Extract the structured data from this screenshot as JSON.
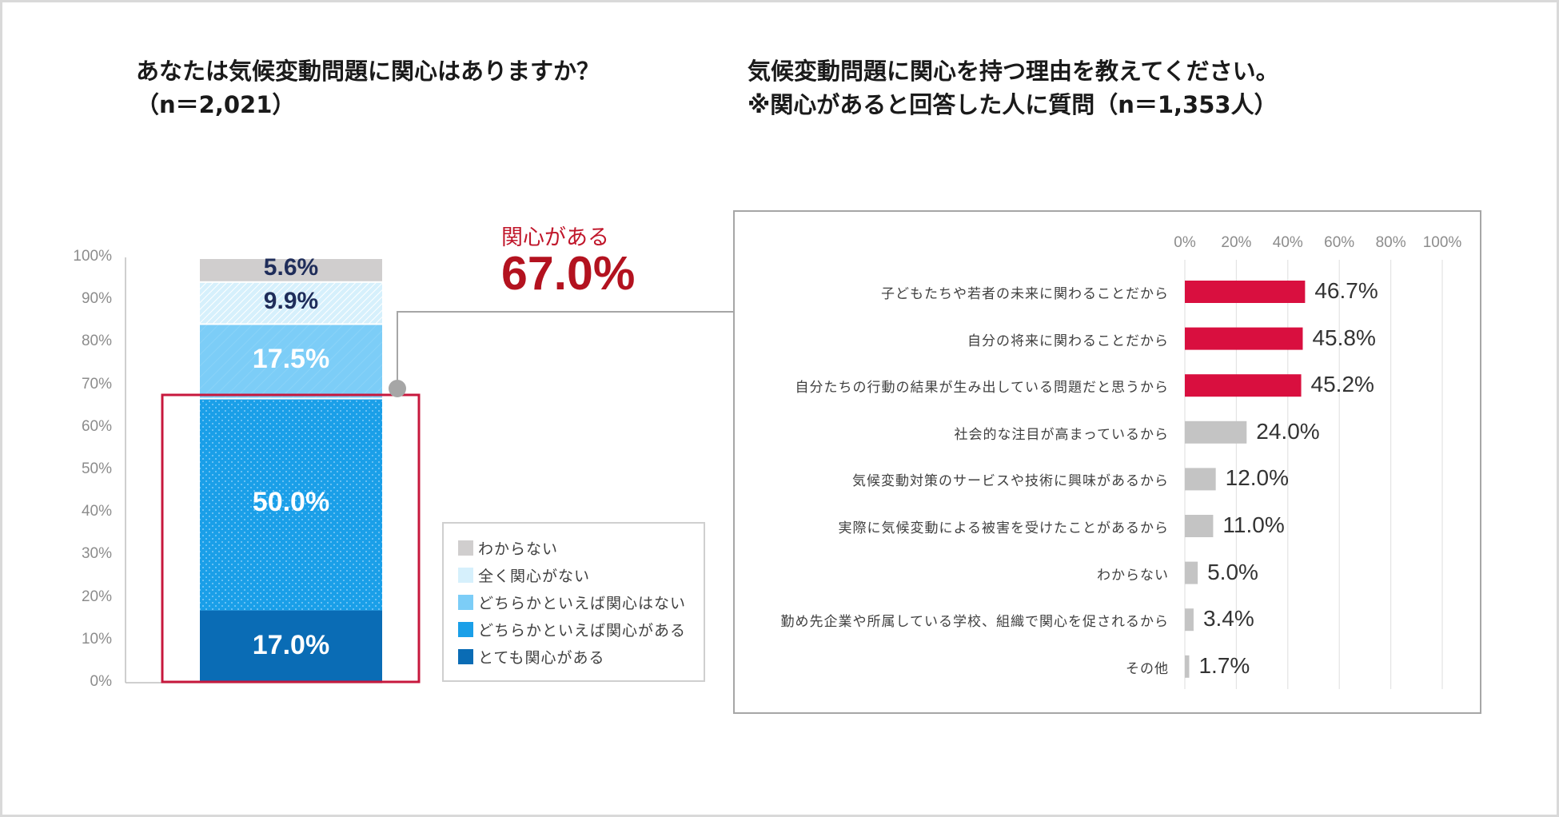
{
  "left_title": {
    "line1": "あなたは気候変動問題に関心はありますか？",
    "line2": "（n＝2,021）"
  },
  "right_title": {
    "line1": "気候変動問題に関心を持つ理由を教えてください。",
    "line2": "※関心があると回答した人に質問（n＝1,353人）"
  },
  "callout": {
    "label": "関心がある",
    "value": "67.0%",
    "color": "#b3121f"
  },
  "chart_data": [
    {
      "type": "bar",
      "stacked": true,
      "title": "あなたは気候変動問題に関心はありますか？",
      "n_label": "（n＝2,021）",
      "ylim": [
        0,
        100
      ],
      "yticks": [
        "0%",
        "10%",
        "20%",
        "30%",
        "40%",
        "50%",
        "60%",
        "70%",
        "80%",
        "90%",
        "100%"
      ],
      "series": [
        {
          "name": "とても関心がある",
          "value": 17.0,
          "label": "17.0%",
          "color": "#0a6cb5",
          "label_color": "#ffffff"
        },
        {
          "name": "どちらかといえば関心がある",
          "value": 50.0,
          "label": "50.0%",
          "color": "#1a9fe8",
          "label_color": "#ffffff"
        },
        {
          "name": "どちらかといえば関心はない",
          "value": 17.5,
          "label": "17.5%",
          "color": "#7ccdf7",
          "label_color": "#ffffff"
        },
        {
          "name": "全く関心がない",
          "value": 9.9,
          "label": "9.9%",
          "color": "#d6f0fc",
          "label_color": "#1f2d5a"
        },
        {
          "name": "わからない",
          "value": 5.6,
          "label": "5.6%",
          "color": "#d0cece",
          "label_color": "#1f2d5a"
        }
      ],
      "legend": [
        "わからない",
        "全く関心がない",
        "どちらかといえば関心はない",
        "どちらかといえば関心がある",
        "とても関心がある"
      ],
      "legend_position": "right",
      "highlight_total": "67.0%"
    },
    {
      "type": "bar",
      "orientation": "horizontal",
      "title": "気候変動問題に関心を持つ理由を教えてください。",
      "xlim": [
        0,
        100
      ],
      "xticks": [
        "0%",
        "20%",
        "40%",
        "60%",
        "80%",
        "100%"
      ],
      "grid": true,
      "categories": [
        "子どもたちや若者の未来に関わることだから",
        "自分の将来に関わることだから",
        "自分たちの行動の結果が生み出している問題だと思うから",
        "社会的な注目が高まっているから",
        "気候変動対策のサービスや技術に興味があるから",
        "実際に気候変動による被害を受けたことがあるから",
        "わからない",
        "勤め先企業や所属している学校、組織で関心を促されるから",
        "その他"
      ],
      "values": [
        46.7,
        45.8,
        45.2,
        24.0,
        12.0,
        11.0,
        5.0,
        3.4,
        1.7
      ],
      "value_labels": [
        "46.7%",
        "45.8%",
        "45.2%",
        "24.0%",
        "12.0%",
        "11.0%",
        "5.0%",
        "3.4%",
        "1.7%"
      ],
      "highlight_color": "#d90f3f",
      "other_color": "#c4c4c4",
      "highlighted_count": 3
    }
  ]
}
